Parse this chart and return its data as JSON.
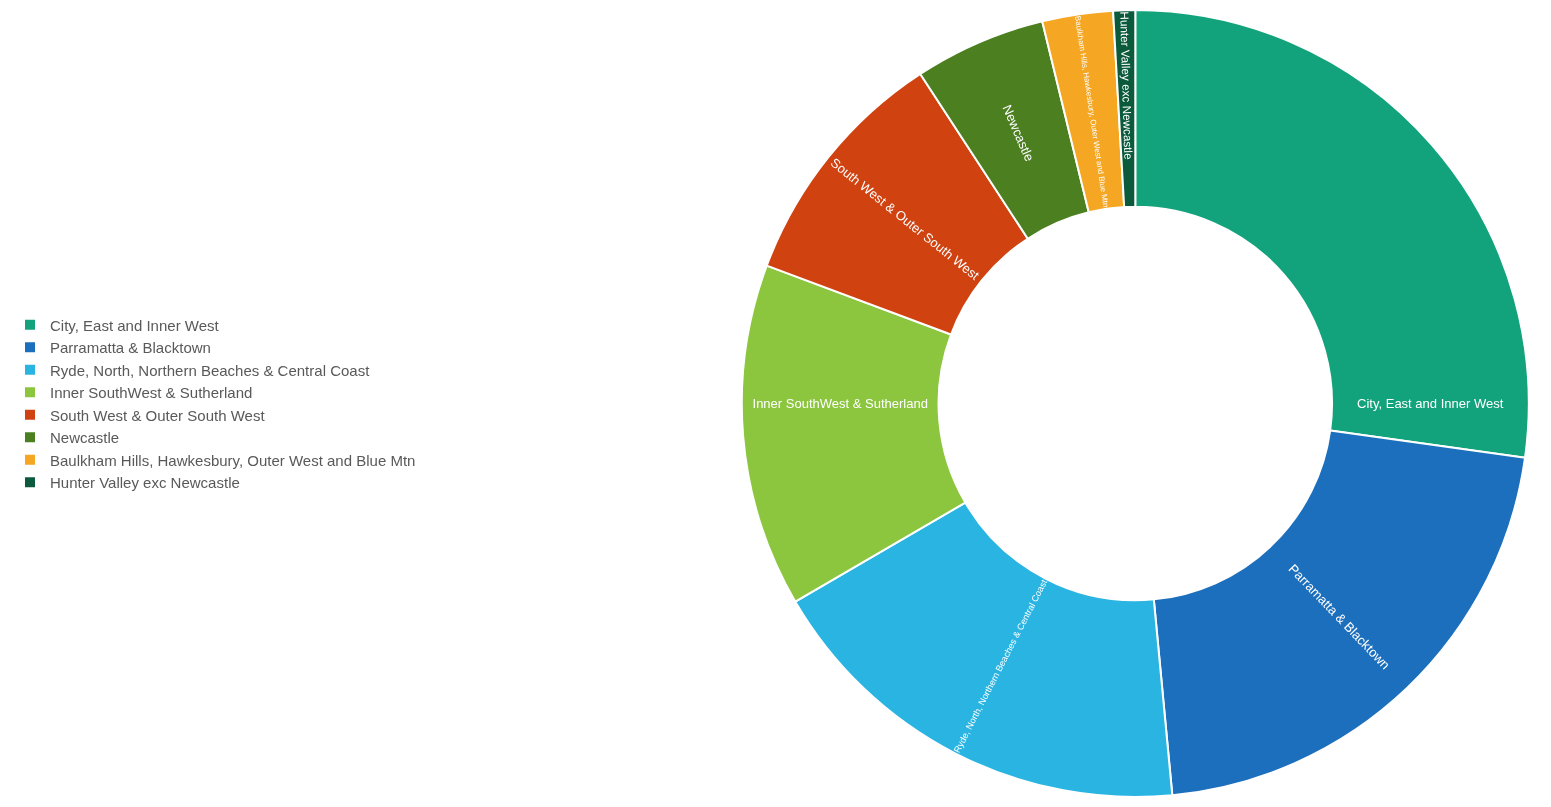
{
  "chart_data": {
    "type": "donut",
    "categories": [
      "City, East and Inner West",
      "Parramatta & Blacktown",
      "Ryde, North, Northern Beaches & Central Coast",
      "Inner SouthWest & Sutherland",
      "South West & Outer South West",
      "Newcastle",
      "Baulkham Hills, Hawkesbury, Outer West and Blue Mtn",
      "Hunter Valley exc Newcastle"
    ],
    "values": [
      27.2,
      21.3,
      18.1,
      14.1,
      10.1,
      5.4,
      2.9,
      0.9
    ],
    "colors": [
      "#13a37c",
      "#1c6fbd",
      "#2ab4e2",
      "#8cc63f",
      "#d0420f",
      "#4b7f20",
      "#f5a623",
      "#0b5a3c"
    ],
    "legend": "left"
  }
}
